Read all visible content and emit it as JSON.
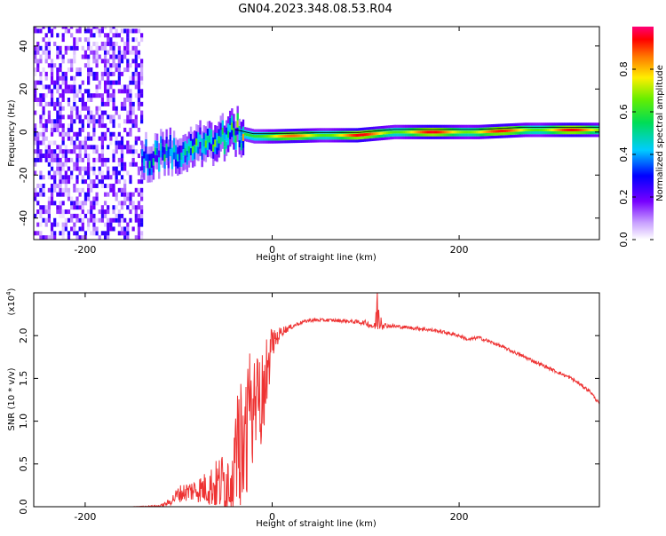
{
  "title": "GN04.2023.348.08.53.R04",
  "chart_data": [
    {
      "type": "heatmap",
      "xlabel": "Height of straight line (km)",
      "ylabel": "Frequency (Hz)",
      "xlim": [
        -255,
        350
      ],
      "ylim": [
        -50,
        49
      ],
      "xticks": [
        -200,
        0,
        200
      ],
      "yticks": [
        -40,
        -20,
        0,
        20,
        40
      ],
      "xtick_labels": [
        "-200",
        "0",
        "200"
      ],
      "ytick_labels": [
        "-40",
        "-20",
        "0",
        "20",
        "40"
      ],
      "colorbar": {
        "label": "Normalized spectral amplitude",
        "range": [
          0,
          1
        ],
        "ticks": [
          0.0,
          0.2,
          0.4,
          0.6,
          0.8
        ],
        "tick_labels": [
          "0.0",
          "0.2",
          "0.4",
          "0.6",
          "0.8"
        ],
        "colormap": "rainbow (white-purple-blue-cyan-green-yellow-orange-red-pink)"
      },
      "noise_region": {
        "x": [
          -255,
          -138
        ],
        "level": 0.2
      },
      "ridge": [
        {
          "x": -140,
          "f": -12,
          "amp": 0.5
        },
        {
          "x": -110,
          "f": -10,
          "amp": 0.55
        },
        {
          "x": -80,
          "f": -6,
          "amp": 0.6
        },
        {
          "x": -55,
          "f": -3,
          "amp": 0.65
        },
        {
          "x": -40,
          "f": 0,
          "amp": 0.7
        },
        {
          "x": -20,
          "f": -2,
          "amp": 0.85
        },
        {
          "x": 0,
          "f": -2,
          "amp": 0.85
        },
        {
          "x": 50,
          "f": -1.5,
          "amp": 0.9
        },
        {
          "x": 90,
          "f": -1.5,
          "amp": 0.95
        },
        {
          "x": 130,
          "f": 0,
          "amp": 0.9
        },
        {
          "x": 170,
          "f": 0,
          "amp": 0.95
        },
        {
          "x": 220,
          "f": 0,
          "amp": 0.95
        },
        {
          "x": 270,
          "f": 1,
          "amp": 0.9
        },
        {
          "x": 310,
          "f": 1,
          "amp": 0.95
        },
        {
          "x": 350,
          "f": 1,
          "amp": 0.9
        }
      ]
    },
    {
      "type": "line",
      "xlabel": "Height of straight line (km)",
      "ylabel": "SNR (10 * v/v)",
      "y_multiplier_label": "(x10",
      "y_multiplier_exp": "4",
      "xlim": [
        -255,
        350
      ],
      "ylim": [
        0,
        2.5
      ],
      "xticks": [
        -200,
        0,
        200
      ],
      "yticks": [
        0.0,
        0.5,
        1.0,
        1.5,
        2.0
      ],
      "xtick_labels": [
        "-200",
        "0",
        "200"
      ],
      "ytick_labels": [
        "0.0",
        "0.5",
        "1.0",
        "1.5",
        "2.0"
      ],
      "line_color": "#ee3333",
      "series": [
        {
          "x": [
            -255,
            -200,
            -150,
            -120,
            -110,
            -100,
            -90,
            -80,
            -70,
            -60,
            -50,
            -40,
            -35,
            -30,
            -25,
            -20,
            -15,
            -10,
            -5,
            0,
            10,
            20,
            30,
            40,
            60,
            80,
            100,
            110,
            112,
            120,
            140,
            160,
            180,
            200,
            210,
            220,
            240,
            260,
            280,
            300,
            320,
            340,
            350
          ],
          "y": [
            0.0,
            0.0,
            0.0,
            0.01,
            0.05,
            0.15,
            0.18,
            0.2,
            0.22,
            0.25,
            0.3,
            0.4,
            0.8,
            0.6,
            0.9,
            1.0,
            1.2,
            1.3,
            1.5,
            1.9,
            2.05,
            2.1,
            2.15,
            2.18,
            2.18,
            2.17,
            2.15,
            2.1,
            2.3,
            2.12,
            2.1,
            2.08,
            2.05,
            2.0,
            1.95,
            1.98,
            1.9,
            1.8,
            1.7,
            1.6,
            1.5,
            1.35,
            1.2
          ],
          "spread": [
            0,
            0,
            0,
            0.01,
            0.04,
            0.1,
            0.12,
            0.15,
            0.2,
            0.3,
            0.4,
            0.5,
            0.8,
            0.7,
            0.9,
            0.8,
            0.6,
            0.5,
            0.3,
            0.15,
            0.06,
            0.03,
            0.02,
            0.02,
            0.02,
            0.02,
            0.03,
            0.05,
            0.3,
            0.03,
            0.02,
            0.02,
            0.02,
            0.02,
            0.02,
            0.02,
            0.02,
            0.02,
            0.02,
            0.02,
            0.02,
            0.02,
            0.02
          ]
        }
      ]
    }
  ]
}
